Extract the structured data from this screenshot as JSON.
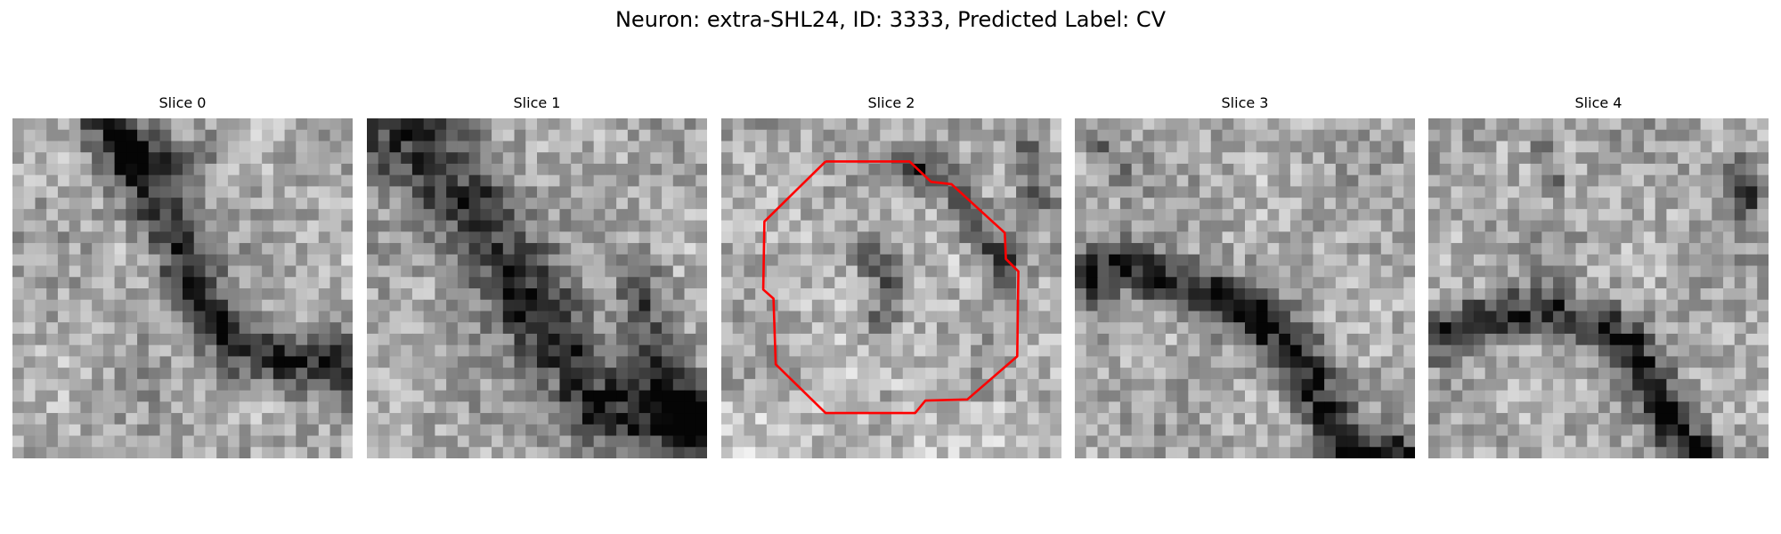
{
  "title": "Neuron: extra-SHL24, ID: 3333, Predicted Label: CV",
  "panels": [
    {
      "label": "Slice 0",
      "seed": 11,
      "structure": "diag-tl-to-br-branch"
    },
    {
      "label": "Slice 1",
      "seed": 23,
      "structure": "diag-tl-to-br-wide"
    },
    {
      "label": "Slice 2",
      "seed": 37,
      "structure": "vesicle-with-outline"
    },
    {
      "label": "Slice 3",
      "seed": 51,
      "structure": "curve-left-to-bottom-right"
    },
    {
      "label": "Slice 4",
      "seed": 67,
      "structure": "arc-bottom"
    }
  ],
  "image_grid": {
    "cells": 30,
    "colormap": "grayscale"
  },
  "outline": {
    "panel": 2,
    "color": "#ff0000"
  }
}
